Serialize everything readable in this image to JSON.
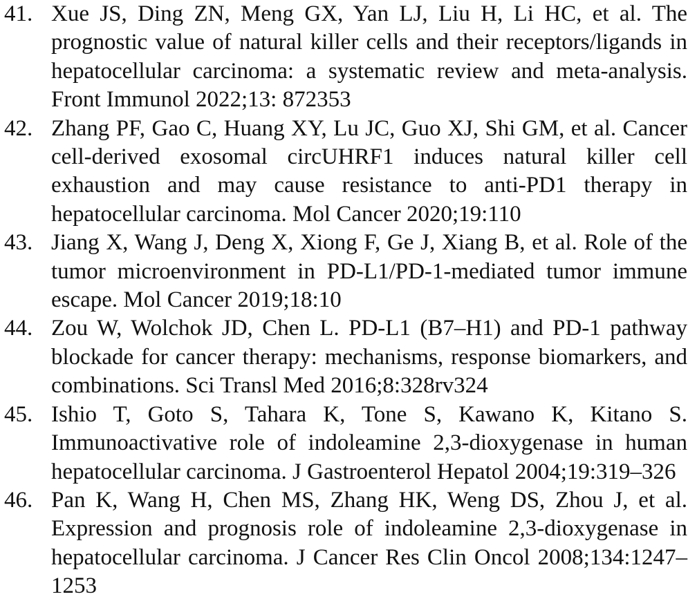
{
  "references": [
    {
      "number": "41.",
      "text": "Xue JS, Ding ZN, Meng GX, Yan LJ, Liu H, Li HC, et al. The prognostic value of natural killer cells and their receptors/ligands in hepatocellular carcinoma: a systematic review and meta-analysis. Front Immunol 2022;13: 872353"
    },
    {
      "number": "42.",
      "text": "Zhang PF, Gao C, Huang XY, Lu JC, Guo XJ, Shi GM, et al. Cancer cell-derived exosomal circUHRF1 induces natural killer cell exhaustion and may cause resistance to anti-PD1 therapy in hepatocellular carcinoma. Mol Cancer 2020;19:110"
    },
    {
      "number": "43.",
      "text": "Jiang X, Wang J, Deng X, Xiong F, Ge J, Xiang B, et al. Role of the tumor microenvironment in PD-L1/PD-1-mediated tumor immune escape. Mol Cancer 2019;18:10"
    },
    {
      "number": "44.",
      "text": "Zou W, Wolchok JD, Chen L. PD-L1 (B7–H1) and PD-1 pathway blockade for cancer therapy: mechanisms, response biomarkers, and combinations. Sci Transl Med 2016;8:328rv324"
    },
    {
      "number": "45.",
      "text": "Ishio T, Goto S, Tahara K, Tone S, Kawano K, Kitano S. Immunoactivative role of indoleamine 2,3-dioxygenase in human hepatocellular carcinoma. J Gastroenterol Hepatol 2004;19:319–326"
    },
    {
      "number": "46.",
      "text": "Pan K, Wang H, Chen MS, Zhang HK, Weng DS, Zhou J, et al. Expression and prognosis role of indoleamine 2,3-dioxygenase in hepatocellular carcinoma. J Cancer Res Clin Oncol 2008;134:1247–1253"
    }
  ]
}
